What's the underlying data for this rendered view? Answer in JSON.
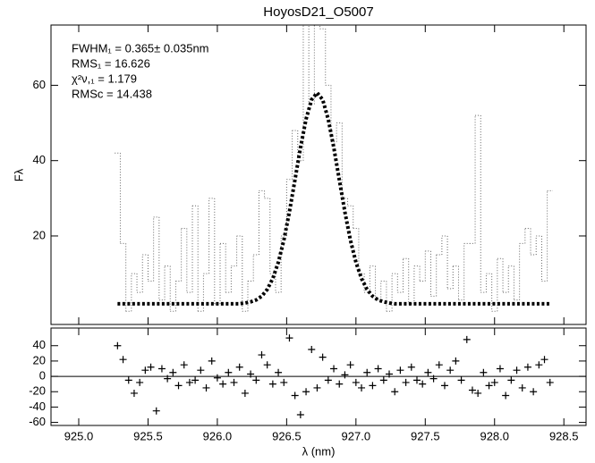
{
  "chart_data": [
    {
      "type": "line",
      "title": "HoyosD21_O5007",
      "y_label": "Fλ",
      "annotations": [
        "FWHM₁ =  0.365± 0.035nm",
        "RMS₁ = 16.626",
        "χ²ν,₁ =    1.179",
        "RMSc = 14.438"
      ],
      "x": [
        925.28,
        925.32,
        925.36,
        925.4,
        925.44,
        925.48,
        925.52,
        925.56,
        925.6,
        925.64,
        925.68,
        925.72,
        925.76,
        925.8,
        925.84,
        925.88,
        925.92,
        925.96,
        926.0,
        926.04,
        926.08,
        926.12,
        926.16,
        926.2,
        926.24,
        926.28,
        926.32,
        926.36,
        926.4,
        926.44,
        926.48,
        926.52,
        926.56,
        926.6,
        926.64,
        926.68,
        926.72,
        926.76,
        926.8,
        926.84,
        926.88,
        926.92,
        926.96,
        927.0,
        927.04,
        927.08,
        927.12,
        927.16,
        927.2,
        927.24,
        927.28,
        927.32,
        927.36,
        927.4,
        927.44,
        927.48,
        927.52,
        927.56,
        927.6,
        927.64,
        927.68,
        927.72,
        927.76,
        927.8,
        927.84,
        927.88,
        927.92,
        927.96,
        928.0,
        928.04,
        928.08,
        928.12,
        928.16,
        928.2,
        928.24,
        928.28,
        928.32,
        928.36,
        928.4
      ],
      "xlim": [
        924.8,
        928.66
      ],
      "ylim": [
        -3.5,
        76
      ],
      "yticks": [
        20,
        40,
        60
      ],
      "series": [
        {
          "color": "#666666",
          "drawstyle": "steps",
          "values": [
            42,
            18,
            0,
            10,
            5,
            15,
            8,
            25,
            3,
            12,
            0,
            8,
            22,
            5,
            28,
            0,
            10,
            30,
            2,
            18,
            5,
            12,
            20,
            0,
            8,
            15,
            32,
            30,
            10,
            5,
            20,
            35,
            48,
            40,
            80,
            55,
            80,
            75,
            60,
            45,
            50,
            30,
            28,
            22,
            10,
            5,
            12,
            3,
            8,
            0,
            10,
            5,
            14,
            2,
            12,
            8,
            16,
            4,
            15,
            20,
            6,
            12,
            3,
            18,
            18,
            52,
            5,
            10,
            0,
            14,
            5,
            12,
            3,
            18,
            22,
            15,
            20,
            8,
            32
          ]
        },
        {
          "color": "#000000",
          "drawstyle": "line",
          "values": [
            2.0,
            2.0,
            2.0,
            2.0,
            2.0,
            2.0,
            2.0,
            2.0,
            2.0,
            2.0,
            2.0,
            2.0,
            2.0,
            2.0,
            2.0,
            2.0,
            2.0,
            2.0,
            2.0,
            2.0,
            2.0,
            2.0,
            2.0,
            2.2,
            2.5,
            3.0,
            4.0,
            5.8,
            8.7,
            13.0,
            18.9,
            26.4,
            34.9,
            43.5,
            51.0,
            56.2,
            58.0,
            56.2,
            51.0,
            43.5,
            34.9,
            26.4,
            18.9,
            13.0,
            8.7,
            5.8,
            4.0,
            3.0,
            2.5,
            2.2,
            2.0,
            2.0,
            2.0,
            2.0,
            2.0,
            2.0,
            2.0,
            2.0,
            2.0,
            2.0,
            2.0,
            2.0,
            2.0,
            2.0,
            2.0,
            2.0,
            2.0,
            2.0,
            2.0,
            2.0,
            2.0,
            2.0,
            2.0,
            2.0,
            2.0,
            2.0,
            2.0,
            2.0,
            2.0
          ]
        }
      ]
    },
    {
      "type": "scatter",
      "x_label": "λ (nm)",
      "marker": "+",
      "color": "#000000",
      "xlim": [
        924.8,
        928.66
      ],
      "xticks": [
        {
          "value": 925,
          "label": "925.0"
        },
        {
          "value": 925.5,
          "label": "925.5"
        },
        {
          "value": 926,
          "label": "926.0"
        },
        {
          "value": 926.5,
          "label": "926.5"
        },
        {
          "value": 927,
          "label": "927.0"
        },
        {
          "value": 927.5,
          "label": "927.5"
        },
        {
          "value": 928,
          "label": "928.0"
        },
        {
          "value": 928.5,
          "label": "928.5"
        }
      ],
      "ylim": [
        -64,
        63
      ],
      "yticks": [
        40,
        20,
        0,
        -20,
        -40,
        -60
      ],
      "values": [
        40,
        22,
        -5,
        -22,
        -8,
        8,
        12,
        -45,
        10,
        -3,
        5,
        -12,
        15,
        -8,
        -5,
        8,
        -15,
        20,
        -2,
        -10,
        5,
        -8,
        12,
        -22,
        3,
        -5,
        28,
        15,
        -10,
        5,
        -8,
        50,
        -25,
        -50,
        -20,
        35,
        -15,
        25,
        -5,
        10,
        -10,
        2,
        15,
        -8,
        -15,
        5,
        -12,
        10,
        -5,
        3,
        -20,
        8,
        -8,
        12,
        -5,
        -10,
        5,
        -3,
        15,
        -12,
        8,
        20,
        -5,
        48,
        -18,
        -22,
        5,
        -12,
        -8,
        10,
        -25,
        -5,
        8,
        -15,
        12,
        -20,
        15,
        22,
        -8
      ]
    }
  ]
}
